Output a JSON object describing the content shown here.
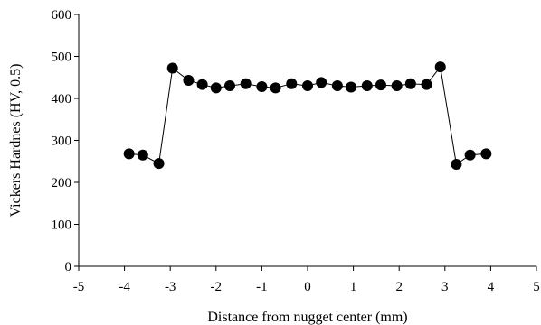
{
  "chart_data": {
    "type": "scatter",
    "xlabel": "Distance from nugget center (mm)",
    "ylabel": "Vickers Hardnes (HV, 0.5)",
    "xlim": [
      -5,
      5
    ],
    "ylim": [
      0,
      600
    ],
    "xticks": [
      "-5",
      "-4",
      "-3",
      "-2",
      "-1",
      "0",
      "1",
      "2",
      "3",
      "4",
      "5"
    ],
    "yticks": [
      "0",
      "100",
      "200",
      "300",
      "400",
      "500",
      "600"
    ],
    "grid": false,
    "marker_color": "#000000",
    "series": [
      {
        "x": [
          -3.9,
          -3.6,
          -3.25,
          -2.95,
          -2.6,
          -2.3,
          -2.0,
          -1.7,
          -1.35,
          -1.0,
          -0.7,
          -0.35,
          0.0,
          0.3,
          0.65,
          0.95,
          1.3,
          1.6,
          1.95,
          2.25,
          2.6,
          2.9,
          3.25,
          3.55,
          3.9
        ],
        "y": [
          268,
          265,
          245,
          472,
          443,
          433,
          425,
          430,
          435,
          428,
          425,
          435,
          430,
          438,
          430,
          427,
          430,
          432,
          430,
          435,
          433,
          475,
          243,
          265,
          268
        ]
      }
    ]
  }
}
